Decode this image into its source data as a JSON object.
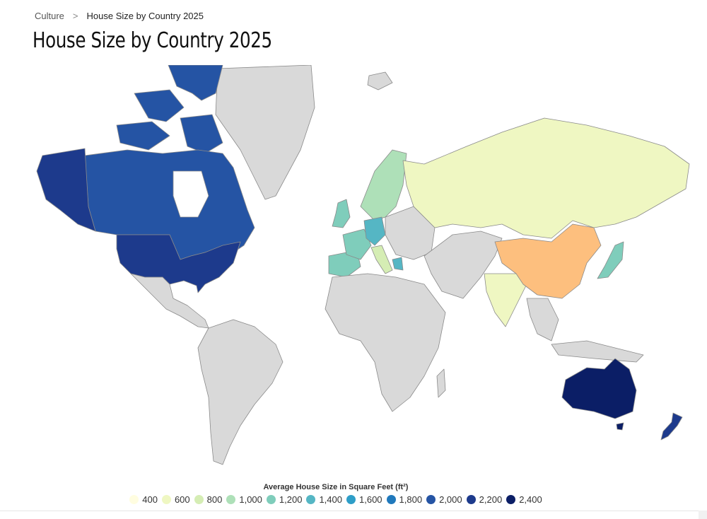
{
  "breadcrumb": {
    "parent": "Culture",
    "separator": ">",
    "current": "House Size by Country 2025"
  },
  "title": "House Size by Country 2025",
  "legend": {
    "title": "Average House Size in Square Feet (ft²)",
    "items": [
      {
        "label": "400",
        "color": "#fffde0"
      },
      {
        "label": "600",
        "color": "#eff7c2"
      },
      {
        "label": "800",
        "color": "#d5edb4"
      },
      {
        "label": "1,000",
        "color": "#aee0b8"
      },
      {
        "label": "1,200",
        "color": "#7fcdbb"
      },
      {
        "label": "1,400",
        "color": "#55b6c4"
      },
      {
        "label": "1,600",
        "color": "#2e9ec8"
      },
      {
        "label": "1,800",
        "color": "#2079bc"
      },
      {
        "label": "2,000",
        "color": "#2554a4"
      },
      {
        "label": "2,200",
        "color": "#1d3a8c"
      },
      {
        "label": "2,400",
        "color": "#0b1e66"
      }
    ]
  },
  "map": {
    "no_data_color": "#d9d9d9",
    "regions": [
      {
        "name": "Canada",
        "color": "#2554a4"
      },
      {
        "name": "United States",
        "color": "#1d3a8c"
      },
      {
        "name": "Alaska",
        "color": "#1d3a8c"
      },
      {
        "name": "Australia",
        "color": "#0b1e66"
      },
      {
        "name": "New Zealand",
        "color": "#1d3a8c"
      },
      {
        "name": "China",
        "color": "#fdbf7e"
      },
      {
        "name": "Russia",
        "color": "#eff7c2"
      },
      {
        "name": "India",
        "color": "#eff7c2"
      },
      {
        "name": "Japan",
        "color": "#7fcdbb"
      },
      {
        "name": "France",
        "color": "#7fcdbb"
      },
      {
        "name": "Germany",
        "color": "#55b6c4"
      },
      {
        "name": "Scandinavia",
        "color": "#aee0b8"
      },
      {
        "name": "United Kingdom",
        "color": "#7fcdbb"
      },
      {
        "name": "Spain",
        "color": "#7fcdbb"
      },
      {
        "name": "Italy",
        "color": "#d5edb4"
      },
      {
        "name": "Greece",
        "color": "#55b6c4"
      }
    ]
  }
}
